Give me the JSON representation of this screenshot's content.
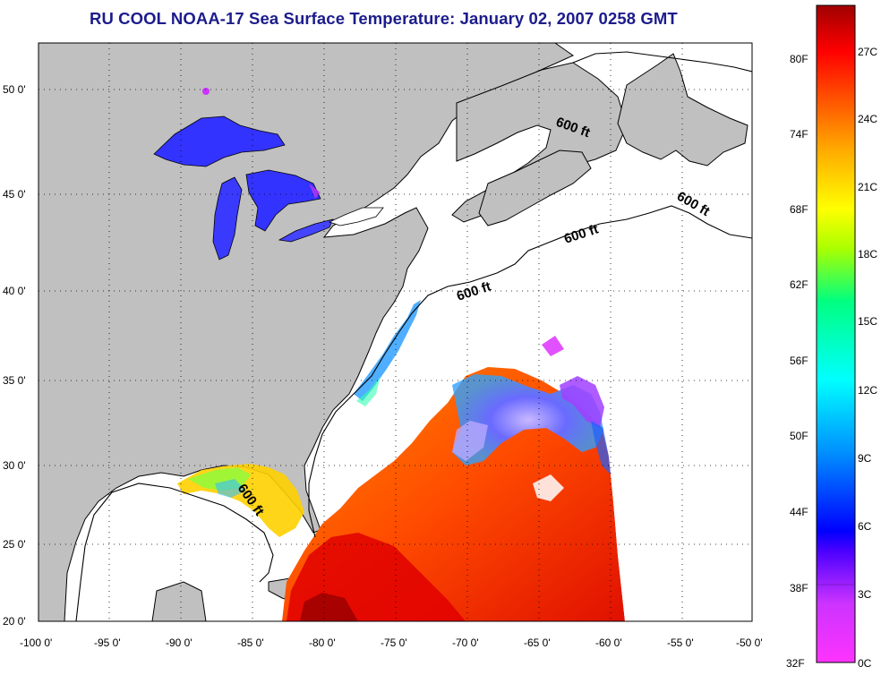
{
  "title": "RU COOL  NOAA-17  Sea Surface Temperature:  January 02, 2007 0258 GMT",
  "lon_ticks": [
    "-100 0'",
    "-95 0'",
    "-90 0'",
    "-85 0'",
    "-80 0'",
    "-75 0'",
    "-70 0'",
    "-65 0'",
    "-60 0'",
    "-55 0'",
    "-50 0'"
  ],
  "lat_ticks": [
    "20 0'",
    "25 0'",
    "30 0'",
    "35 0'",
    "40 0'",
    "45 0'",
    "50 0'"
  ],
  "contour_labels": [
    "600 ft",
    "600 ft",
    "600 ft",
    "600 ft",
    "600 ft"
  ],
  "colorbar": {
    "fahrenheit_labels": [
      "80F",
      "74F",
      "68F",
      "62F",
      "56F",
      "50F",
      "44F",
      "38F",
      "32F"
    ],
    "celsius_labels": [
      "27C",
      "24C",
      "21C",
      "18C",
      "15C",
      "12C",
      "9C",
      "6C",
      "3C",
      "0C"
    ],
    "range_c": [
      0,
      28
    ],
    "colors": [
      "#ff33ff",
      "#9b30ff",
      "#0000ff",
      "#00a0ff",
      "#00ffff",
      "#00ff80",
      "#aaff00",
      "#ffff00",
      "#ffaa00",
      "#ff5000",
      "#ff0000",
      "#a00000"
    ]
  },
  "map_extent": {
    "lon": [
      -100,
      -50
    ],
    "lat": [
      20,
      52.5
    ]
  },
  "colors": {
    "land": "#c0c0c0",
    "ocean_nodata": "#ffffff",
    "title": "#1c1c8c",
    "grid": "#000000"
  }
}
